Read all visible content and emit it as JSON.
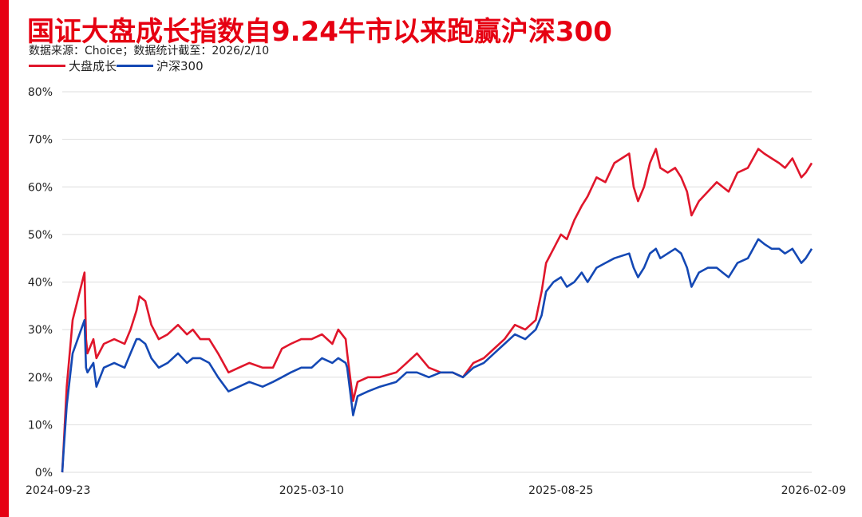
{
  "title": "国证大盘成长指数自9.24牛市以来跑赢沪深300",
  "source": "数据来源：Choice；数据统计截至：2026/2/10",
  "colors": {
    "accent": "#e60012",
    "series_red": "#e0162b",
    "series_blue": "#1448b4",
    "grid": "#dddddd"
  },
  "chart_data": {
    "type": "line",
    "title": "国证大盘成长指数自9.24牛市以来跑赢沪深300",
    "xlabel": "",
    "ylabel": "",
    "x_ticks": [
      "2024-09-23",
      "2025-03-10",
      "2025-08-25",
      "2026-02-09"
    ],
    "y_ticks": [
      "0%",
      "10%",
      "20%",
      "30%",
      "40%",
      "50%",
      "60%",
      "70%",
      "80%"
    ],
    "ylim": [
      0,
      80
    ],
    "xlim": [
      "2024-09-23",
      "2026-02-10"
    ],
    "grid": true,
    "legend": "top-left",
    "series": [
      {
        "name": "大盘成长",
        "color": "#e0162b",
        "points": [
          [
            "2024-09-23",
            0
          ],
          [
            "2024-09-24",
            6
          ],
          [
            "2024-09-26",
            18
          ],
          [
            "2024-09-30",
            32
          ],
          [
            "2024-10-08",
            42
          ],
          [
            "2024-10-09",
            28
          ],
          [
            "2024-10-10",
            25
          ],
          [
            "2024-10-14",
            28
          ],
          [
            "2024-10-16",
            24
          ],
          [
            "2024-10-21",
            27
          ],
          [
            "2024-10-28",
            28
          ],
          [
            "2024-11-04",
            27
          ],
          [
            "2024-11-08",
            30
          ],
          [
            "2024-11-12",
            34
          ],
          [
            "2024-11-14",
            37
          ],
          [
            "2024-11-18",
            36
          ],
          [
            "2024-11-22",
            31
          ],
          [
            "2024-11-27",
            28
          ],
          [
            "2024-12-03",
            29
          ],
          [
            "2024-12-10",
            31
          ],
          [
            "2024-12-16",
            29
          ],
          [
            "2024-12-20",
            30
          ],
          [
            "2024-12-25",
            28
          ],
          [
            "2024-12-31",
            28
          ],
          [
            "2025-01-06",
            25
          ],
          [
            "2025-01-13",
            21
          ],
          [
            "2025-01-20",
            22
          ],
          [
            "2025-01-27",
            23
          ],
          [
            "2025-02-05",
            22
          ],
          [
            "2025-02-12",
            22
          ],
          [
            "2025-02-18",
            26
          ],
          [
            "2025-02-24",
            27
          ],
          [
            "2025-03-03",
            28
          ],
          [
            "2025-03-10",
            28
          ],
          [
            "2025-03-17",
            29
          ],
          [
            "2025-03-24",
            27
          ],
          [
            "2025-03-28",
            30
          ],
          [
            "2025-04-02",
            28
          ],
          [
            "2025-04-03",
            25
          ],
          [
            "2025-04-07",
            15
          ],
          [
            "2025-04-10",
            19
          ],
          [
            "2025-04-17",
            20
          ],
          [
            "2025-04-25",
            20
          ],
          [
            "2025-05-06",
            21
          ],
          [
            "2025-05-13",
            23
          ],
          [
            "2025-05-20",
            25
          ],
          [
            "2025-05-28",
            22
          ],
          [
            "2025-06-05",
            21
          ],
          [
            "2025-06-13",
            21
          ],
          [
            "2025-06-20",
            20
          ],
          [
            "2025-06-27",
            23
          ],
          [
            "2025-07-04",
            24
          ],
          [
            "2025-07-11",
            26
          ],
          [
            "2025-07-18",
            28
          ],
          [
            "2025-07-25",
            31
          ],
          [
            "2025-08-01",
            30
          ],
          [
            "2025-08-08",
            32
          ],
          [
            "2025-08-12",
            38
          ],
          [
            "2025-08-15",
            44
          ],
          [
            "2025-08-20",
            47
          ],
          [
            "2025-08-25",
            50
          ],
          [
            "2025-08-29",
            49
          ],
          [
            "2025-09-03",
            53
          ],
          [
            "2025-09-08",
            56
          ],
          [
            "2025-09-12",
            58
          ],
          [
            "2025-09-18",
            62
          ],
          [
            "2025-09-24",
            61
          ],
          [
            "2025-09-30",
            65
          ],
          [
            "2025-10-10",
            67
          ],
          [
            "2025-10-13",
            60
          ],
          [
            "2025-10-16",
            57
          ],
          [
            "2025-10-20",
            60
          ],
          [
            "2025-10-24",
            65
          ],
          [
            "2025-10-28",
            68
          ],
          [
            "2025-10-31",
            64
          ],
          [
            "2025-11-05",
            63
          ],
          [
            "2025-11-10",
            64
          ],
          [
            "2025-11-14",
            62
          ],
          [
            "2025-11-18",
            59
          ],
          [
            "2025-11-21",
            54
          ],
          [
            "2025-11-26",
            57
          ],
          [
            "2025-12-02",
            59
          ],
          [
            "2025-12-08",
            61
          ],
          [
            "2025-12-12",
            60
          ],
          [
            "2025-12-16",
            59
          ],
          [
            "2025-12-22",
            63
          ],
          [
            "2025-12-29",
            64
          ],
          [
            "2026-01-05",
            68
          ],
          [
            "2026-01-09",
            67
          ],
          [
            "2026-01-14",
            66
          ],
          [
            "2026-01-19",
            65
          ],
          [
            "2026-01-23",
            64
          ],
          [
            "2026-01-28",
            66
          ],
          [
            "2026-02-03",
            62
          ],
          [
            "2026-02-06",
            63
          ],
          [
            "2026-02-10",
            65
          ]
        ]
      },
      {
        "name": "沪深300",
        "color": "#1448b4",
        "points": [
          [
            "2024-09-23",
            0
          ],
          [
            "2024-09-24",
            5
          ],
          [
            "2024-09-26",
            14
          ],
          [
            "2024-09-30",
            25
          ],
          [
            "2024-10-08",
            32
          ],
          [
            "2024-10-09",
            22
          ],
          [
            "2024-10-10",
            21
          ],
          [
            "2024-10-14",
            23
          ],
          [
            "2024-10-16",
            18
          ],
          [
            "2024-10-21",
            22
          ],
          [
            "2024-10-28",
            23
          ],
          [
            "2024-11-04",
            22
          ],
          [
            "2024-11-08",
            25
          ],
          [
            "2024-11-12",
            28
          ],
          [
            "2024-11-14",
            28
          ],
          [
            "2024-11-18",
            27
          ],
          [
            "2024-11-22",
            24
          ],
          [
            "2024-11-27",
            22
          ],
          [
            "2024-12-03",
            23
          ],
          [
            "2024-12-10",
            25
          ],
          [
            "2024-12-16",
            23
          ],
          [
            "2024-12-20",
            24
          ],
          [
            "2024-12-25",
            24
          ],
          [
            "2024-12-31",
            23
          ],
          [
            "2025-01-06",
            20
          ],
          [
            "2025-01-13",
            17
          ],
          [
            "2025-01-20",
            18
          ],
          [
            "2025-01-27",
            19
          ],
          [
            "2025-02-05",
            18
          ],
          [
            "2025-02-12",
            19
          ],
          [
            "2025-02-18",
            20
          ],
          [
            "2025-02-24",
            21
          ],
          [
            "2025-03-03",
            22
          ],
          [
            "2025-03-10",
            22
          ],
          [
            "2025-03-17",
            24
          ],
          [
            "2025-03-24",
            23
          ],
          [
            "2025-03-28",
            24
          ],
          [
            "2025-04-02",
            23
          ],
          [
            "2025-04-03",
            22
          ],
          [
            "2025-04-07",
            12
          ],
          [
            "2025-04-10",
            16
          ],
          [
            "2025-04-17",
            17
          ],
          [
            "2025-04-25",
            18
          ],
          [
            "2025-05-06",
            19
          ],
          [
            "2025-05-13",
            21
          ],
          [
            "2025-05-20",
            21
          ],
          [
            "2025-05-28",
            20
          ],
          [
            "2025-06-05",
            21
          ],
          [
            "2025-06-13",
            21
          ],
          [
            "2025-06-20",
            20
          ],
          [
            "2025-06-27",
            22
          ],
          [
            "2025-07-04",
            23
          ],
          [
            "2025-07-11",
            25
          ],
          [
            "2025-07-18",
            27
          ],
          [
            "2025-07-25",
            29
          ],
          [
            "2025-08-01",
            28
          ],
          [
            "2025-08-08",
            30
          ],
          [
            "2025-08-12",
            33
          ],
          [
            "2025-08-15",
            38
          ],
          [
            "2025-08-20",
            40
          ],
          [
            "2025-08-25",
            41
          ],
          [
            "2025-08-29",
            39
          ],
          [
            "2025-09-03",
            40
          ],
          [
            "2025-09-08",
            42
          ],
          [
            "2025-09-12",
            40
          ],
          [
            "2025-09-18",
            43
          ],
          [
            "2025-09-24",
            44
          ],
          [
            "2025-09-30",
            45
          ],
          [
            "2025-10-10",
            46
          ],
          [
            "2025-10-13",
            43
          ],
          [
            "2025-10-16",
            41
          ],
          [
            "2025-10-20",
            43
          ],
          [
            "2025-10-24",
            46
          ],
          [
            "2025-10-28",
            47
          ],
          [
            "2025-10-31",
            45
          ],
          [
            "2025-11-05",
            46
          ],
          [
            "2025-11-10",
            47
          ],
          [
            "2025-11-14",
            46
          ],
          [
            "2025-11-18",
            43
          ],
          [
            "2025-11-21",
            39
          ],
          [
            "2025-11-26",
            42
          ],
          [
            "2025-12-02",
            43
          ],
          [
            "2025-12-08",
            43
          ],
          [
            "2025-12-12",
            42
          ],
          [
            "2025-12-16",
            41
          ],
          [
            "2025-12-22",
            44
          ],
          [
            "2025-12-29",
            45
          ],
          [
            "2026-01-05",
            49
          ],
          [
            "2026-01-09",
            48
          ],
          [
            "2026-01-14",
            47
          ],
          [
            "2026-01-19",
            47
          ],
          [
            "2026-01-23",
            46
          ],
          [
            "2026-01-28",
            47
          ],
          [
            "2026-02-03",
            44
          ],
          [
            "2026-02-06",
            45
          ],
          [
            "2026-02-10",
            47
          ]
        ]
      }
    ]
  }
}
